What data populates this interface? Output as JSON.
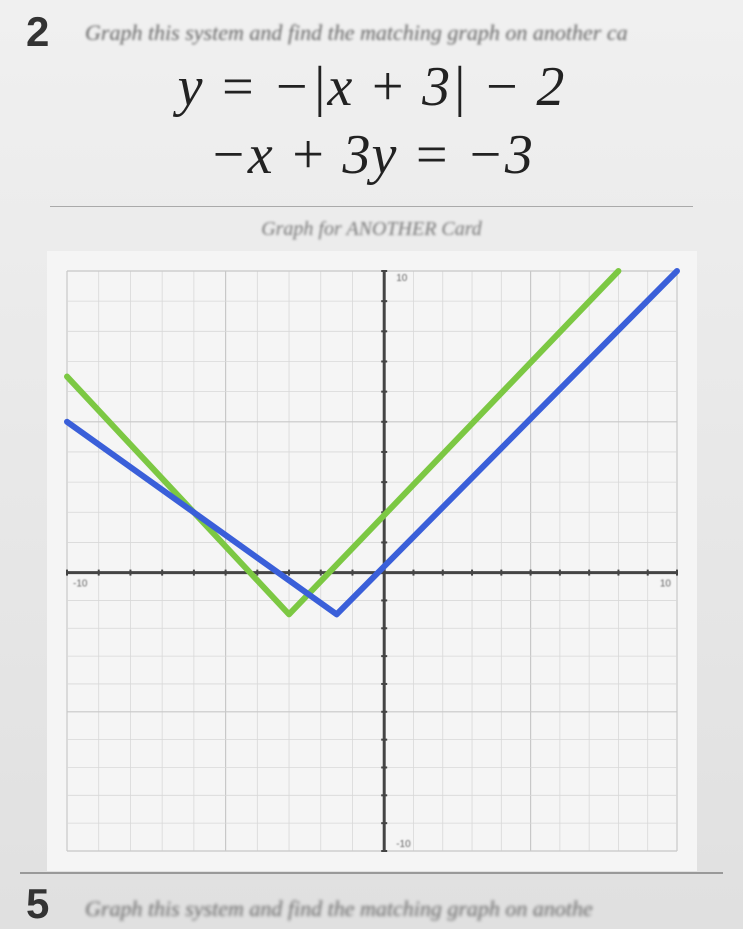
{
  "problem2": {
    "number": "2",
    "instruction": "Graph this system and find the matching graph on another ca",
    "equation1": "y = −|x + 3| − 2",
    "equation2": "−x + 3y = −3",
    "graph_title": "Graph for ANOTHER Card"
  },
  "problem5": {
    "number": "5",
    "instruction": "Graph this system and find the matching graph on anothe"
  },
  "chart": {
    "type": "line",
    "background_color": "#f5f5f5",
    "grid_color": "#c8c8c8",
    "grid_color_light": "#d8d8d8",
    "axis_color": "#444444",
    "xlim": [
      -10,
      10
    ],
    "ylim": [
      -10,
      10
    ],
    "xtick_step": 1,
    "ytick_step": 1,
    "origin_offset_x": 0.38,
    "series": [
      {
        "name": "green-v",
        "color": "#7cc843",
        "line_width": 6,
        "points": [
          [
            -10,
            6.5
          ],
          [
            -3,
            -1.5
          ],
          [
            8,
            10
          ]
        ]
      },
      {
        "name": "blue-v",
        "color": "#3a5fd9",
        "line_width": 6,
        "points": [
          [
            -10,
            5
          ],
          [
            -1.5,
            -1.5
          ],
          [
            10,
            10
          ]
        ]
      }
    ],
    "axis_labels": {
      "y_top": "10",
      "x_left": "-10",
      "x_right": "10",
      "y_bottom": "-10"
    }
  }
}
